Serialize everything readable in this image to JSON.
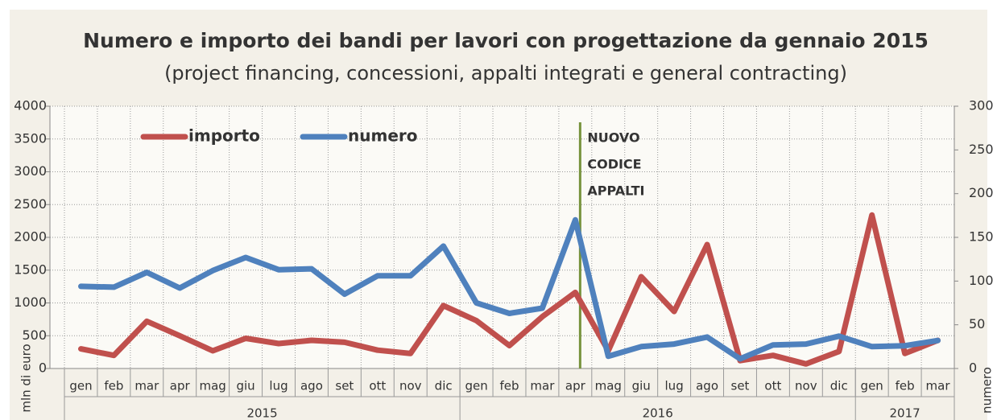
{
  "chart_data": {
    "type": "line",
    "title": "Numero e importo dei  bandi per lavori con progettazione da gennaio 2015",
    "subtitle": "(project financing, concessioni, appalti integrati e general contracting)",
    "y_label": "mln di euro",
    "y2_label": "numero",
    "categories": [
      "gen",
      "feb",
      "mar",
      "apr",
      "mag",
      "giu",
      "lug",
      "ago",
      "set",
      "ott",
      "nov",
      "dic",
      "gen",
      "feb",
      "mar",
      "apr",
      "mag",
      "giu",
      "lug",
      "ago",
      "set",
      "ott",
      "nov",
      "dic",
      "gen",
      "feb",
      "mar"
    ],
    "category_groups": [
      {
        "label": "2015",
        "count": 12
      },
      {
        "label": "2016",
        "count": 12
      },
      {
        "label": "2017",
        "count": 3
      }
    ],
    "series": [
      {
        "name": "importo",
        "color": "#c0504d",
        "values": [
          300,
          200,
          720,
          500,
          270,
          460,
          380,
          430,
          400,
          280,
          230,
          960,
          730,
          350,
          790,
          1160,
          270,
          1400,
          870,
          1890,
          120,
          200,
          70,
          260,
          2340,
          230,
          430
        ]
      },
      {
        "name": "numero",
        "color": "#4f81bd",
        "axis": "y2",
        "values": [
          94,
          93,
          110,
          92,
          112,
          127,
          113,
          114,
          85,
          106,
          106,
          140,
          75,
          63,
          69,
          170,
          14,
          25,
          28,
          36,
          11,
          27,
          28,
          37,
          25,
          26,
          32
        ]
      }
    ],
    "ylim": [
      0,
      4000
    ],
    "yticks": [
      0,
      500,
      1000,
      1500,
      2000,
      2500,
      3000,
      3500,
      4000
    ],
    "y2lim": [
      0,
      300
    ],
    "y2ticks": [
      0,
      50,
      100,
      150,
      200,
      250,
      300
    ],
    "grid": true,
    "legend": "top-left",
    "annotation": {
      "lines": [
        "NUOVO",
        "CODICE",
        "APPALTI"
      ],
      "color": "#77933c",
      "category_index": 15
    }
  }
}
